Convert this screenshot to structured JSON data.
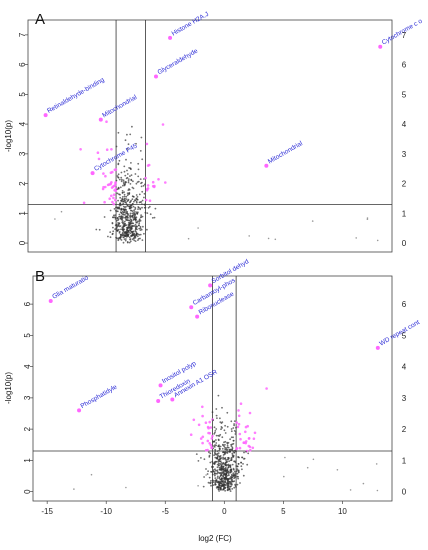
{
  "figure": {
    "xlabel": "log2 (FC)",
    "ylabel": "-log10(p)"
  },
  "chart_data": [
    {
      "type": "scatter",
      "panel": "A",
      "title": "",
      "xlabel": "",
      "ylabel": "-log10(p)",
      "xlim": [
        -17.5,
        13.5
      ],
      "ylim": [
        -0.3,
        7.5
      ],
      "yticks": [
        0,
        1,
        2,
        3,
        4,
        5,
        6,
        7
      ],
      "xticks_shown": false,
      "threshold_vlines": [
        -10,
        -7.5
      ],
      "threshold_hline": 1.3,
      "colors": {
        "significant": "#ff66ff",
        "nonsignificant": "#333333",
        "label": "#2a2ad6"
      },
      "labeled_points": [
        {
          "label": "Histone H2A.J",
          "x": -5.4,
          "y": 6.9
        },
        {
          "label": "Glyceraldehyde",
          "x": -6.6,
          "y": 5.6
        },
        {
          "label": "Cytochrome c o",
          "x": 12.5,
          "y": 6.6
        },
        {
          "label": "Retinaldehyde-binding",
          "x": -16.0,
          "y": 4.3
        },
        {
          "label": "Mitochondrial",
          "x": -11.3,
          "y": 4.15
        },
        {
          "label": "Cytochrome P45",
          "x": -12.0,
          "y": 2.35
        },
        {
          "label": "Mitochondrial",
          "x": 2.8,
          "y": 2.6
        }
      ]
    },
    {
      "type": "scatter",
      "panel": "B",
      "title": "",
      "xlabel": "log2 (FC)",
      "ylabel": "-log10(p)",
      "xlim": [
        -16.2,
        14.2
      ],
      "ylim": [
        -0.3,
        6.9
      ],
      "xticks": [
        -15,
        -10,
        -5,
        0,
        5,
        10
      ],
      "yticks": [
        0,
        1,
        2,
        3,
        4,
        5,
        6
      ],
      "threshold_vlines": [
        -1,
        1
      ],
      "threshold_hline": 1.3,
      "colors": {
        "significant": "#ff66ff",
        "nonsignificant": "#333333",
        "label": "#2a2ad6"
      },
      "labeled_points": [
        {
          "label": "Sorbitol dehyd",
          "x": -1.2,
          "y": 6.6
        },
        {
          "label": "Glia maturatio",
          "x": -14.7,
          "y": 6.1
        },
        {
          "label": "Carbamoyl-phos",
          "x": -2.8,
          "y": 5.9
        },
        {
          "label": "Ribonuclease",
          "x": -2.3,
          "y": 5.6
        },
        {
          "label": "WD repeat cont",
          "x": 13.0,
          "y": 4.6
        },
        {
          "label": "Inositol polyp",
          "x": -5.4,
          "y": 3.4
        },
        {
          "label": "Annexin A1 OSR",
          "x": -4.4,
          "y": 2.95
        },
        {
          "label": "Thioredoxin",
          "x": -5.6,
          "y": 2.9
        },
        {
          "label": "Phosphatidyle",
          "x": -12.3,
          "y": 2.6
        }
      ]
    }
  ]
}
